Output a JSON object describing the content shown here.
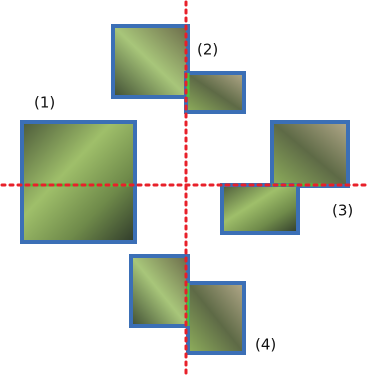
{
  "labels": [
    "(1)",
    "(2)",
    "(3)",
    "(4)"
  ]
}
